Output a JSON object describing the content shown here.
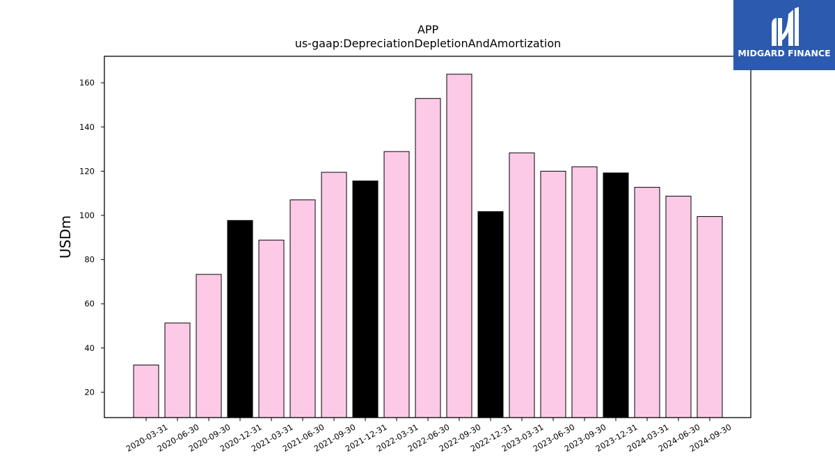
{
  "brand": {
    "name": "MIDGARD FINANCE",
    "logo_color": "#2c5aae"
  },
  "chart_data": {
    "type": "bar",
    "title": "APP",
    "subtitle": "us-gaap:DepreciationDepletionAndAmortization",
    "xlabel": "",
    "ylabel": "USDm",
    "ylim": [
      8.5,
      172
    ],
    "yticks": [
      20,
      40,
      60,
      80,
      100,
      120,
      140,
      160
    ],
    "grid": false,
    "colors": {
      "quarter": "#fccae6",
      "year_end": "#000000",
      "edge": "#000000"
    },
    "categories": [
      "2020-03-31",
      "2020-06-30",
      "2020-09-30",
      "2020-12-31",
      "2021-03-31",
      "2021-06-30",
      "2021-09-30",
      "2021-12-31",
      "2022-03-31",
      "2022-06-30",
      "2022-09-30",
      "2022-12-31",
      "2023-03-31",
      "2023-06-30",
      "2023-09-30",
      "2023-12-31",
      "2024-03-31",
      "2024-06-30",
      "2024-09-30"
    ],
    "values": [
      32.3,
      51.3,
      73.3,
      97.7,
      88.8,
      107.0,
      119.5,
      115.6,
      128.9,
      152.9,
      163.9,
      101.7,
      128.3,
      120.0,
      122.0,
      119.2,
      112.7,
      108.7,
      99.5
    ]
  }
}
